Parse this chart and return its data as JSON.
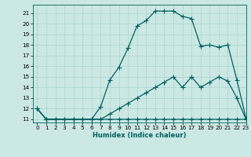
{
  "xlabel": "Humidex (Indice chaleur)",
  "bg_color": "#cce8e4",
  "grid_color": "#a8d5cf",
  "line_color": "#006060",
  "xlim": [
    -0.5,
    23
  ],
  "ylim": [
    10.7,
    21.8
  ],
  "yticks": [
    11,
    12,
    13,
    14,
    15,
    16,
    17,
    18,
    19,
    20,
    21
  ],
  "xticks": [
    0,
    1,
    2,
    3,
    4,
    5,
    6,
    7,
    8,
    9,
    10,
    11,
    12,
    13,
    14,
    15,
    16,
    17,
    18,
    19,
    20,
    21,
    22,
    23
  ],
  "curve1_x": [
    0,
    1,
    2,
    3,
    4,
    5,
    6,
    7,
    8,
    9,
    10,
    11,
    12,
    13,
    14,
    15,
    16,
    17,
    18,
    19,
    20,
    21,
    22,
    23
  ],
  "curve1_y": [
    12,
    11,
    11,
    11,
    11,
    11,
    11,
    11,
    11,
    11,
    11,
    11,
    11,
    11,
    11,
    11,
    11,
    11,
    11,
    11,
    11,
    11,
    11,
    11
  ],
  "curve2_x": [
    0,
    1,
    2,
    3,
    4,
    5,
    6,
    7,
    8,
    9,
    10,
    11,
    12,
    13,
    14,
    15,
    16,
    17,
    18,
    19,
    20,
    21,
    22,
    23
  ],
  "curve2_y": [
    12,
    11,
    11,
    11,
    11,
    11,
    11,
    11,
    11.5,
    12,
    12.5,
    13,
    13.5,
    14,
    14.5,
    15,
    14,
    15,
    14,
    14.5,
    15,
    14.6,
    13,
    11
  ],
  "curve3_x": [
    0,
    1,
    2,
    3,
    4,
    5,
    6,
    7,
    8,
    9,
    10,
    11,
    12,
    13,
    14,
    15,
    16,
    17,
    18,
    19,
    20,
    21,
    22,
    23
  ],
  "curve3_y": [
    12,
    11,
    11,
    11,
    11,
    11,
    11,
    12.2,
    14.7,
    15.9,
    17.7,
    19.8,
    20.3,
    21.2,
    21.2,
    21.2,
    20.7,
    20.5,
    17.9,
    18.0,
    17.8,
    18.0,
    14.7,
    11.1
  ],
  "marker": "+",
  "markersize": 4.5,
  "linewidth": 0.9,
  "xlabel_fontsize": 6.0,
  "tick_fontsize": 5.2
}
